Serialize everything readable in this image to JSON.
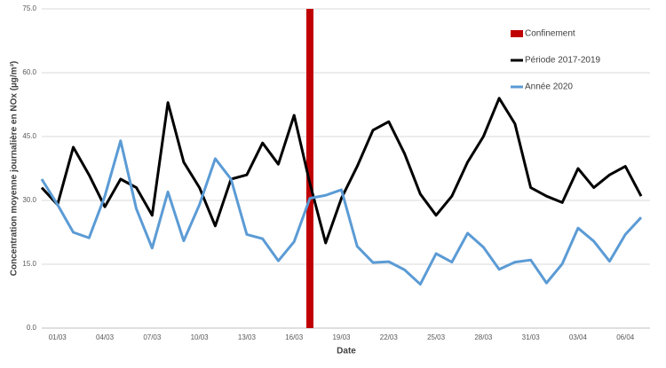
{
  "chart_data": {
    "type": "line",
    "xlabel": "Date",
    "ylabel": "Concentration moyenne journalière en NOx (µg/m³)",
    "categories": [
      null,
      "01/03",
      null,
      null,
      "04/03",
      null,
      null,
      "07/03",
      null,
      null,
      "10/03",
      null,
      null,
      "13/03",
      null,
      null,
      "16/03",
      null,
      null,
      "19/03",
      null,
      null,
      "22/03",
      null,
      null,
      "25/03",
      null,
      null,
      "28/03",
      null,
      null,
      "31/03",
      null,
      null,
      "03/04",
      null,
      null,
      "06/04",
      null
    ],
    "ylim": [
      0,
      75
    ],
    "yticks": [
      {
        "value": 0,
        "label": "0.0"
      },
      {
        "value": 15,
        "label": "15.0"
      },
      {
        "value": 30,
        "label": "30.0"
      },
      {
        "value": 45,
        "label": "45.0"
      },
      {
        "value": 60,
        "label": "60.0"
      },
      {
        "value": 75,
        "label": "75.0"
      }
    ],
    "grid": true,
    "legend": "upper right",
    "series": [
      {
        "name": "Confinement",
        "type": "bar",
        "color": "#c00000",
        "values": [
          null,
          null,
          null,
          null,
          null,
          null,
          null,
          null,
          null,
          null,
          null,
          null,
          null,
          null,
          null,
          null,
          null,
          75,
          null,
          null,
          null,
          null,
          null,
          null,
          null,
          null,
          null,
          null,
          null,
          null,
          null,
          null,
          null,
          null,
          null,
          null,
          null,
          null,
          null
        ]
      },
      {
        "name": "Période 2017-2019",
        "type": "line",
        "color": "#000000",
        "values": [
          33,
          29,
          42.5,
          36,
          28.5,
          35,
          33,
          26.5,
          53,
          39,
          33,
          24,
          35,
          36,
          43.5,
          38.5,
          50,
          34,
          20,
          30.5,
          38,
          46.5,
          48.5,
          41,
          31.5,
          26.5,
          31,
          39,
          45,
          54,
          48,
          33,
          31,
          29.5,
          37.5,
          33,
          36,
          38,
          31
        ]
      },
      {
        "name": "Année 2020",
        "type": "line",
        "color": "#5b9bd5",
        "values": [
          35,
          29,
          22.5,
          21.2,
          31,
          44,
          28,
          18.8,
          32,
          20.5,
          29,
          39.8,
          35,
          22,
          21,
          15.8,
          20.3,
          30.5,
          31.2,
          32.5,
          19.2,
          15.4,
          15.6,
          13.7,
          10.3,
          17.5,
          15.5,
          22.3,
          19,
          13.8,
          15.5,
          16,
          10.6,
          15.1,
          23.5,
          20.4,
          15.7,
          22,
          26
        ]
      }
    ]
  }
}
